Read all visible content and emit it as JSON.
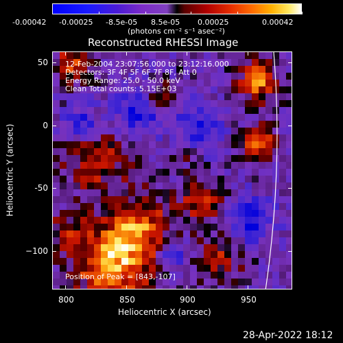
{
  "colorbar": {
    "ticks": [
      "-0.00042",
      "-0.00025",
      "-8.5e-05",
      "8.5e-05",
      "0.00025",
      "0.00042"
    ],
    "units": "(photons cm⁻² s⁻¹ asec⁻²)"
  },
  "plot": {
    "title": "Reconstructed RHESSI Image",
    "xlabel": "Heliocentric X (arcsec)",
    "ylabel": "Heliocentric Y (arcsec)",
    "xticks": [
      "800",
      "850",
      "900",
      "950"
    ],
    "yticks": [
      "50",
      "0",
      "-50",
      "−100"
    ]
  },
  "info": {
    "line1": "12-Feb-2004 23:07:56.000 to 23:12:16.000",
    "line2": "Detectors: 3F 4F 5F 6F 7F 8F, Att 0",
    "line3": "Energy Range: 25.0 - 50.0 keV",
    "line4": "Clean     Total counts: 5.15E+03",
    "peak": "Position of Peak = [843,-107]"
  },
  "footer": {
    "date": "28-Apr-2022 18:12"
  },
  "colors": {
    "low": "#0000ff",
    "mid": "#000000",
    "high": "#ffffff"
  }
}
